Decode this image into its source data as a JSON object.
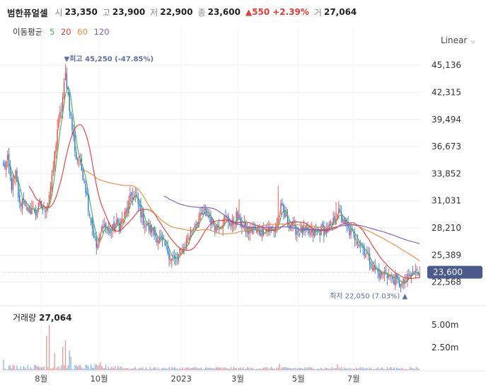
{
  "header": {
    "name": "범한퓨얼셀",
    "open_label": "시",
    "open": "23,350",
    "high_label": "고",
    "high": "23,900",
    "low_label": "저",
    "low": "22,900",
    "close_label": "종",
    "close": "23,600",
    "change": "▲550",
    "change_pct": "+2.39%",
    "volume_label": "거",
    "volume": "27,064"
  },
  "ma": {
    "label": "이동평균",
    "periods": [
      {
        "text": "5",
        "color": "#4caf50"
      },
      {
        "text": "20",
        "color": "#e53935"
      },
      {
        "text": "60",
        "color": "#ef8a3c"
      },
      {
        "text": "120",
        "color": "#7e57c2"
      }
    ]
  },
  "scale": {
    "label": "Linear"
  },
  "volume_panel": {
    "label": "거래량",
    "value": "27,064"
  },
  "colors": {
    "up": "#e53935",
    "down": "#1e6fd9",
    "grid": "#eeeeee",
    "last_badge": "#4a5a8a",
    "annotation": "#5c6fa3"
  },
  "chart_data": {
    "type": "candlestick",
    "y_ticks": [
      45136,
      42315,
      39494,
      36673,
      33852,
      31031,
      28210,
      25389,
      22568
    ],
    "y_tick_labels": [
      "45,136",
      "42,315",
      "39,494",
      "36,673",
      "33,852",
      "31,031",
      "28,210",
      "25,389",
      "22,568"
    ],
    "ylim": [
      21000,
      47500
    ],
    "x_labels": [
      {
        "text": "8월",
        "index": 28
      },
      {
        "text": "10월",
        "index": 71
      },
      {
        "text": "2023",
        "index": 132
      },
      {
        "text": "3월",
        "index": 174
      },
      {
        "text": "5월",
        "index": 219
      },
      {
        "text": "7월",
        "index": 260
      }
    ],
    "n_days": 310,
    "last_price": {
      "value": 23600,
      "text": "23,600"
    },
    "max_annotation": {
      "text": "▼최고 45,250 (-47.85%)",
      "value": 45250,
      "index": 46
    },
    "min_annotation": {
      "text": "최저 22,050 (7.03%) ▲",
      "value": 22050,
      "index": 297
    },
    "volume_ticks": [
      {
        "value": 5000000,
        "text": "5.00m"
      },
      {
        "value": 2500000,
        "text": "2.50m"
      }
    ],
    "volume_max": 6500000,
    "price_anchors": [
      [
        0,
        34500
      ],
      [
        3,
        35200
      ],
      [
        6,
        32500
      ],
      [
        9,
        33800
      ],
      [
        12,
        30500
      ],
      [
        15,
        31500
      ],
      [
        18,
        29600
      ],
      [
        21,
        30400
      ],
      [
        24,
        29800
      ],
      [
        27,
        30600
      ],
      [
        30,
        29900
      ],
      [
        33,
        31000
      ],
      [
        36,
        33200
      ],
      [
        40,
        38500
      ],
      [
        43,
        40600
      ],
      [
        46,
        44200
      ],
      [
        48,
        42000
      ],
      [
        51,
        38500
      ],
      [
        54,
        35500
      ],
      [
        57,
        34800
      ],
      [
        60,
        33200
      ],
      [
        63,
        30500
      ],
      [
        66,
        28200
      ],
      [
        69,
        26200
      ],
      [
        71,
        26800
      ],
      [
        74,
        28800
      ],
      [
        77,
        28000
      ],
      [
        80,
        27800
      ],
      [
        83,
        28600
      ],
      [
        86,
        28500
      ],
      [
        89,
        29200
      ],
      [
        92,
        30200
      ],
      [
        95,
        31600
      ],
      [
        98,
        31400
      ],
      [
        101,
        30200
      ],
      [
        104,
        29000
      ],
      [
        107,
        28300
      ],
      [
        110,
        28000
      ],
      [
        113,
        27400
      ],
      [
        116,
        27000
      ],
      [
        119,
        26500
      ],
      [
        122,
        25800
      ],
      [
        125,
        25000
      ],
      [
        128,
        24800
      ],
      [
        131,
        25600
      ],
      [
        134,
        26200
      ],
      [
        137,
        27200
      ],
      [
        140,
        28000
      ],
      [
        143,
        28800
      ],
      [
        146,
        29200
      ],
      [
        149,
        29800
      ],
      [
        152,
        29600
      ],
      [
        155,
        28800
      ],
      [
        158,
        28400
      ],
      [
        161,
        28600
      ],
      [
        164,
        29200
      ],
      [
        167,
        29000
      ],
      [
        170,
        28600
      ],
      [
        173,
        29400
      ],
      [
        176,
        28800
      ],
      [
        179,
        28200
      ],
      [
        182,
        27800
      ],
      [
        185,
        28200
      ],
      [
        188,
        27800
      ],
      [
        191,
        27900
      ],
      [
        194,
        28100
      ],
      [
        197,
        28000
      ],
      [
        200,
        27900
      ],
      [
        203,
        28600
      ],
      [
        206,
        30300
      ],
      [
        209,
        29400
      ],
      [
        212,
        28800
      ],
      [
        215,
        28300
      ],
      [
        218,
        28000
      ],
      [
        221,
        27900
      ],
      [
        224,
        27800
      ],
      [
        227,
        27700
      ],
      [
        230,
        27600
      ],
      [
        233,
        27800
      ],
      [
        236,
        28000
      ],
      [
        239,
        27900
      ],
      [
        242,
        28100
      ],
      [
        245,
        28800
      ],
      [
        248,
        30000
      ],
      [
        251,
        29200
      ],
      [
        254,
        28500
      ],
      [
        257,
        27800
      ],
      [
        260,
        27400
      ],
      [
        263,
        27000
      ],
      [
        266,
        26400
      ],
      [
        269,
        25600
      ],
      [
        272,
        24800
      ],
      [
        275,
        24000
      ],
      [
        278,
        23600
      ],
      [
        281,
        23400
      ],
      [
        284,
        23600
      ],
      [
        287,
        23100
      ],
      [
        290,
        22900
      ],
      [
        293,
        22600
      ],
      [
        296,
        22300
      ],
      [
        299,
        22700
      ],
      [
        302,
        23200
      ],
      [
        305,
        23500
      ],
      [
        309,
        23600
      ]
    ],
    "spikes": [
      {
        "index": 46,
        "high": 45250
      },
      {
        "index": 40,
        "high": 39500
      },
      {
        "index": 0,
        "high": 35300
      },
      {
        "index": 96,
        "high": 32400
      },
      {
        "index": 204,
        "high": 32600
      },
      {
        "index": 175,
        "high": 31200
      },
      {
        "index": 247,
        "high": 30900
      },
      {
        "index": 297,
        "low": 22050
      }
    ],
    "volume_spikes": [
      {
        "index": 34,
        "value": 5000000
      },
      {
        "index": 32,
        "value": 3800000
      },
      {
        "index": 46,
        "value": 3300000
      },
      {
        "index": 44,
        "value": 2600000
      },
      {
        "index": 49,
        "value": 2200000
      },
      {
        "index": 38,
        "value": 1900000
      },
      {
        "index": 50,
        "value": 1500000
      },
      {
        "index": 0,
        "value": 1200000
      },
      {
        "index": 72,
        "value": 900000
      },
      {
        "index": 205,
        "value": 700000
      },
      {
        "index": 248,
        "value": 650000
      }
    ]
  }
}
